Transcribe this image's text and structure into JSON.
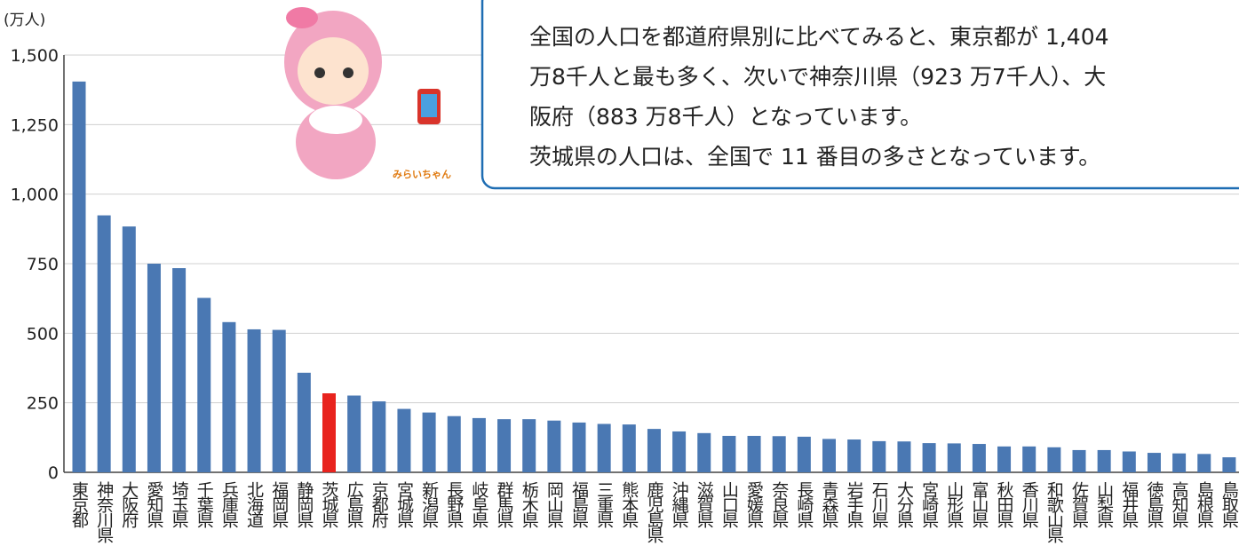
{
  "chart_data": {
    "type": "bar",
    "y_unit": "(万人)",
    "categories": [
      "東京都",
      "神奈川県",
      "大阪府",
      "愛知県",
      "埼玉県",
      "千葉県",
      "兵庫県",
      "北海道",
      "福岡県",
      "静岡県",
      "茨城県",
      "広島県",
      "京都府",
      "宮城県",
      "新潟県",
      "長野県",
      "岐阜県",
      "群馬県",
      "栃木県",
      "岡山県",
      "福島県",
      "三重県",
      "熊本県",
      "鹿児島県",
      "沖縄県",
      "滋賀県",
      "山口県",
      "愛媛県",
      "奈良県",
      "長崎県",
      "青森県",
      "岩手県",
      "石川県",
      "大分県",
      "宮崎県",
      "山形県",
      "富山県",
      "秋田県",
      "香川県",
      "和歌山県",
      "佐賀県",
      "山梨県",
      "福井県",
      "徳島県",
      "高知県",
      "島根県",
      "鳥取県"
    ],
    "values": [
      1404.8,
      923.7,
      883.8,
      750,
      734,
      627,
      540,
      514,
      512,
      358,
      284,
      276,
      255,
      228,
      215,
      202,
      195,
      191,
      191,
      186,
      179,
      174,
      172,
      156,
      147,
      141,
      131,
      131,
      130,
      128,
      120,
      118,
      112,
      111,
      105,
      104,
      102,
      93,
      93,
      90,
      80,
      80,
      75,
      70,
      68,
      66,
      54
    ],
    "color": "#4a78b3",
    "highlight": {
      "index": 10,
      "color": "#e8231e"
    },
    "ylim": [
      0,
      1500
    ],
    "yticks": [
      0,
      250,
      500,
      750,
      {
        "value": 1000,
        "label": "1,000"
      },
      {
        "value": 1250,
        "label": "1,250"
      },
      {
        "value": 1500,
        "label": "1,500"
      }
    ],
    "grid": true,
    "annotation": [
      "全国の人口を都道府県別に比べてみると、東京都が 1,404",
      "万8千人と最も多く、次いで神奈川県（923 万7千人）、大",
      "阪府（883 万8千人）となっています。",
      "茨城県の人口は、全国で 11 番目の多さとなっています。"
    ],
    "mascot_label": "みらいちゃん"
  }
}
